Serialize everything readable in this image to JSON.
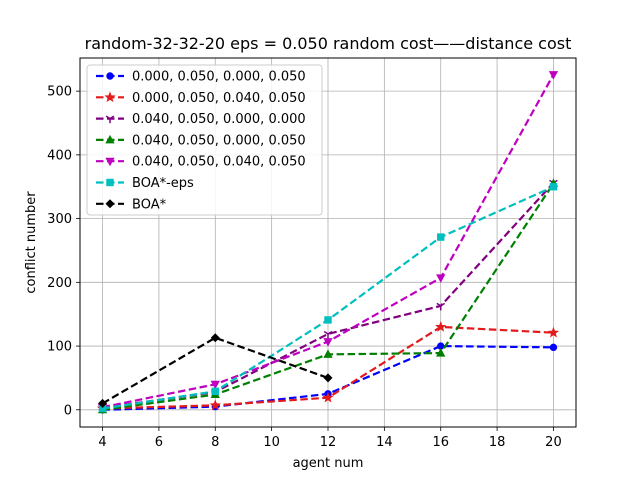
{
  "chart_data": {
    "type": "line",
    "title": "random-32-32-20    eps = 0.050    random cost——distance cost",
    "xlabel": "agent num",
    "ylabel": "conflict number",
    "xlim": [
      3.2,
      20.8
    ],
    "ylim": [
      -27,
      552
    ],
    "xticks": [
      4,
      6,
      8,
      10,
      12,
      14,
      16,
      18,
      20
    ],
    "yticks": [
      0,
      100,
      200,
      300,
      400,
      500
    ],
    "grid": true,
    "legend_position": "top-left",
    "series": [
      {
        "name": "0.000, 0.050, 0.000, 0.050",
        "color": "#0000ff",
        "marker": "circle",
        "x": [
          4,
          8,
          12,
          16,
          20
        ],
        "y": [
          0,
          5,
          25,
          100,
          98
        ]
      },
      {
        "name": "0.000, 0.050, 0.040, 0.050",
        "color": "#e31a1c",
        "marker": "star",
        "x": [
          4,
          8,
          12,
          16,
          20
        ],
        "y": [
          2,
          7,
          19,
          130,
          121
        ]
      },
      {
        "name": "0.040, 0.050, 0.000, 0.000",
        "color": "#800080",
        "marker": "tri_down",
        "x": [
          4,
          8,
          12,
          16,
          20
        ],
        "y": [
          3,
          28,
          119,
          163,
          356
        ]
      },
      {
        "name": "0.040, 0.050, 0.000, 0.050",
        "color": "#008000",
        "marker": "triangle_up",
        "x": [
          4,
          8,
          12,
          16,
          20
        ],
        "y": [
          0,
          24,
          87,
          89,
          355
        ]
      },
      {
        "name": "0.040, 0.050, 0.040, 0.050",
        "color": "#c000c0",
        "marker": "triangle_down",
        "x": [
          4,
          8,
          12,
          16,
          20
        ],
        "y": [
          4,
          40,
          107,
          207,
          526
        ]
      },
      {
        "name": "BOA*-eps",
        "color": "#00bfbf",
        "marker": "square",
        "x": [
          4,
          8,
          12,
          16,
          20
        ],
        "y": [
          2,
          29,
          141,
          271,
          350
        ]
      },
      {
        "name": "BOA*",
        "color": "#000000",
        "marker": "diamond",
        "x": [
          4,
          8,
          12
        ],
        "y": [
          10,
          113,
          50
        ]
      }
    ]
  }
}
